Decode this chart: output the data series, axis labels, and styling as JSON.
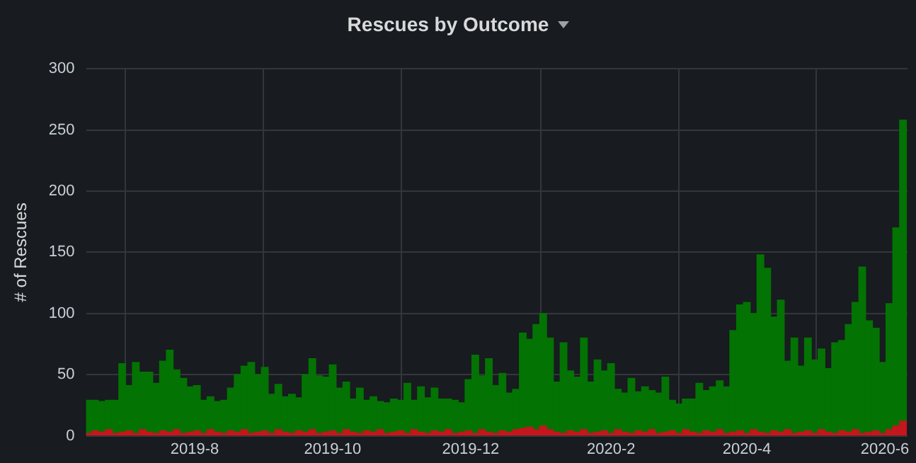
{
  "chart_data": {
    "type": "bar",
    "title": "Rescues by Outcome",
    "ylabel": "# of Rescues",
    "stacked": true,
    "grid": true,
    "x": [
      "2019-06-15",
      "2019-06-18",
      "2019-06-21",
      "2019-06-24",
      "2019-06-27",
      "2019-06-30",
      "2019-07-03",
      "2019-07-06",
      "2019-07-09",
      "2019-07-12",
      "2019-07-15",
      "2019-07-18",
      "2019-07-21",
      "2019-07-24",
      "2019-07-27",
      "2019-07-30",
      "2019-08-02",
      "2019-08-05",
      "2019-08-08",
      "2019-08-11",
      "2019-08-14",
      "2019-08-17",
      "2019-08-20",
      "2019-08-23",
      "2019-08-26",
      "2019-08-29",
      "2019-09-01",
      "2019-09-04",
      "2019-09-07",
      "2019-09-10",
      "2019-09-13",
      "2019-09-16",
      "2019-09-19",
      "2019-09-22",
      "2019-09-25",
      "2019-09-28",
      "2019-10-01",
      "2019-10-04",
      "2019-10-07",
      "2019-10-10",
      "2019-10-13",
      "2019-10-16",
      "2019-10-19",
      "2019-10-22",
      "2019-10-25",
      "2019-10-28",
      "2019-10-31",
      "2019-11-03",
      "2019-11-06",
      "2019-11-09",
      "2019-11-12",
      "2019-11-15",
      "2019-11-18",
      "2019-11-21",
      "2019-11-24",
      "2019-11-27",
      "2019-11-30",
      "2019-12-03",
      "2019-12-06",
      "2019-12-09",
      "2019-12-12",
      "2019-12-15",
      "2019-12-18",
      "2019-12-21",
      "2019-12-24",
      "2019-12-27",
      "2019-12-30",
      "2020-01-02",
      "2020-01-05",
      "2020-01-08",
      "2020-01-11",
      "2020-01-14",
      "2020-01-17",
      "2020-01-20",
      "2020-01-23",
      "2020-01-26",
      "2020-01-29",
      "2020-02-01",
      "2020-02-04",
      "2020-02-07",
      "2020-02-10",
      "2020-02-13",
      "2020-02-16",
      "2020-02-19",
      "2020-02-22",
      "2020-02-25",
      "2020-02-28",
      "2020-03-02",
      "2020-03-05",
      "2020-03-08",
      "2020-03-11",
      "2020-03-14",
      "2020-03-17",
      "2020-03-20",
      "2020-03-23",
      "2020-03-26",
      "2020-03-29",
      "2020-04-01",
      "2020-04-04",
      "2020-04-07",
      "2020-04-10",
      "2020-04-13",
      "2020-04-16",
      "2020-04-19",
      "2020-04-22",
      "2020-04-25",
      "2020-04-28",
      "2020-05-01",
      "2020-05-04",
      "2020-05-07",
      "2020-05-10",
      "2020-05-13",
      "2020-05-16",
      "2020-05-19",
      "2020-05-22",
      "2020-05-25",
      "2020-05-28",
      "2020-05-31",
      "2020-06-03",
      "2020-06-06",
      "2020-06-09"
    ],
    "series": [
      {
        "color": "#c4161c",
        "values": [
          2,
          4,
          3,
          5,
          2,
          3,
          4,
          2,
          5,
          3,
          2,
          4,
          3,
          5,
          2,
          3,
          4,
          2,
          5,
          3,
          2,
          4,
          3,
          5,
          2,
          3,
          4,
          2,
          5,
          3,
          2,
          4,
          3,
          5,
          2,
          3,
          4,
          2,
          5,
          3,
          2,
          4,
          3,
          5,
          2,
          3,
          4,
          2,
          5,
          3,
          2,
          4,
          3,
          5,
          2,
          3,
          4,
          2,
          5,
          3,
          2,
          4,
          3,
          5,
          6,
          7,
          5,
          8,
          5,
          3,
          2,
          4,
          3,
          5,
          2,
          3,
          4,
          2,
          5,
          3,
          2,
          4,
          3,
          5,
          2,
          3,
          4,
          2,
          5,
          3,
          2,
          4,
          3,
          5,
          2,
          3,
          4,
          2,
          5,
          3,
          2,
          4,
          3,
          5,
          2,
          3,
          4,
          2,
          5,
          3,
          2,
          4,
          3,
          5,
          2,
          3,
          4,
          2,
          5,
          8,
          12
        ]
      },
      {
        "color": "#037303",
        "values": [
          27,
          25,
          25,
          24,
          27,
          56,
          37,
          58,
          47,
          49,
          41,
          57,
          67,
          49,
          45,
          37,
          37,
          27,
          27,
          25,
          27,
          35,
          47,
          52,
          58,
          47,
          52,
          32,
          37,
          29,
          32,
          27,
          47,
          58,
          47,
          45,
          54,
          37,
          39,
          27,
          37,
          25,
          29,
          23,
          25,
          27,
          25,
          41,
          24,
          37,
          29,
          35,
          27,
          25,
          27,
          24,
          42,
          64,
          44,
          60,
          39,
          47,
          32,
          33,
          78,
          72,
          86,
          92,
          75,
          41,
          74,
          49,
          45,
          75,
          42,
          59,
          49,
          57,
          33,
          32,
          45,
          32,
          37,
          32,
          33,
          45,
          25,
          24,
          25,
          27,
          41,
          33,
          37,
          40,
          38,
          83,
          103,
          107,
          95,
          145,
          135,
          93,
          108,
          56,
          78,
          54,
          76,
          60,
          66,
          52,
          74,
          74,
          88,
          104,
          136,
          91,
          84,
          58,
          103,
          162,
          246
        ]
      }
    ],
    "xlim": [
      "2019-06-14",
      "2020-06-11"
    ],
    "xticks": [
      {
        "value": "2019-08-01",
        "label": "2019-8"
      },
      {
        "value": "2019-10-01",
        "label": "2019-10"
      },
      {
        "value": "2019-12-01",
        "label": "2019-12"
      },
      {
        "value": "2020-02-01",
        "label": "2020-2"
      },
      {
        "value": "2020-04-01",
        "label": "2020-4"
      },
      {
        "value": "2020-06-01",
        "label": "2020-6"
      }
    ],
    "ylim": [
      0,
      300
    ],
    "yticks": [
      0,
      50,
      100,
      150,
      200,
      250,
      300
    ]
  }
}
